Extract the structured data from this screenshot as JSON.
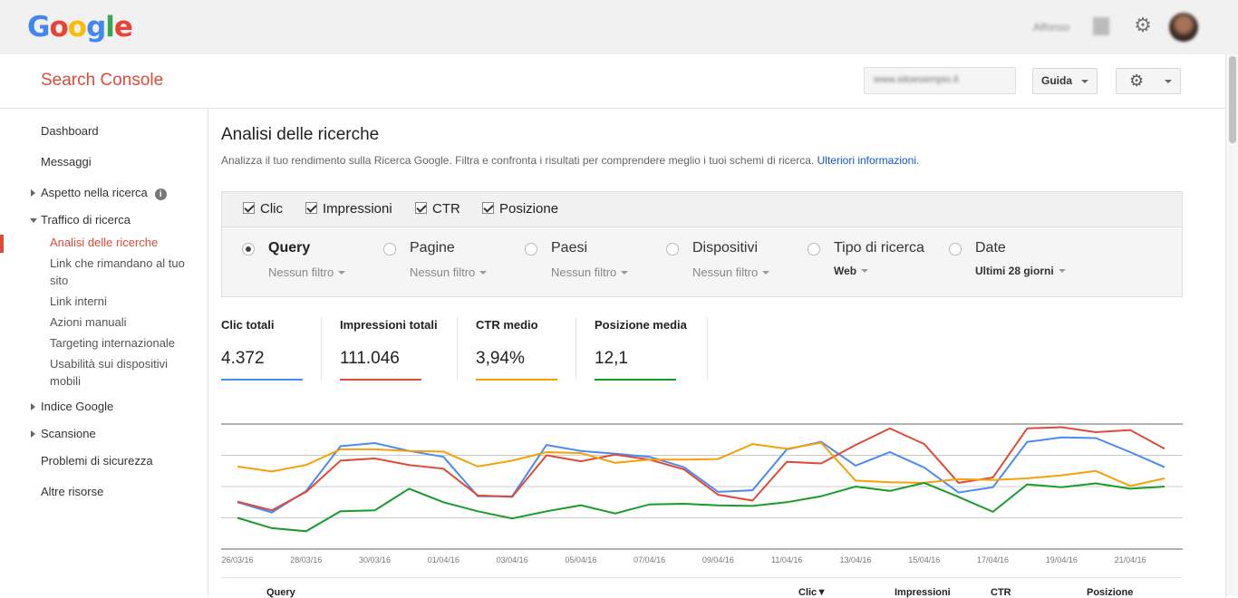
{
  "topbar": {
    "logo": "Google",
    "user_name": "Alfonso"
  },
  "header": {
    "product": "Search Console",
    "site": "www.sitoesempio.it",
    "help_label": "Guida"
  },
  "sidebar": {
    "items": [
      {
        "label": "Dashboard"
      },
      {
        "label": "Messaggi"
      },
      {
        "label": "Aspetto nella ricerca"
      },
      {
        "label": "Traffico di ricerca"
      },
      {
        "label": "Analisi delle ricerche"
      },
      {
        "label": "Link che rimandano al tuo sito"
      },
      {
        "label": "Link interni"
      },
      {
        "label": "Azioni manuali"
      },
      {
        "label": "Targeting internazionale"
      },
      {
        "label": "Usabilità sui dispositivi mobili"
      },
      {
        "label": "Indice Google"
      },
      {
        "label": "Scansione"
      },
      {
        "label": "Problemi di sicurezza"
      },
      {
        "label": "Altre risorse"
      }
    ]
  },
  "main": {
    "title": "Analisi delle ricerche",
    "description": "Analizza il tuo rendimento sulla Ricerca Google. Filtra e confronta i risultati per comprendere meglio i tuoi schemi di ricerca.",
    "more_link": "Ulteriori informazioni",
    "metrics": [
      {
        "label": "Clic",
        "checked": true
      },
      {
        "label": "Impressioni",
        "checked": true
      },
      {
        "label": "CTR",
        "checked": true
      },
      {
        "label": "Posizione",
        "checked": true
      }
    ],
    "dimensions": [
      {
        "label": "Query",
        "filter": "Nessun filtro",
        "selected": true
      },
      {
        "label": "Pagine",
        "filter": "Nessun filtro",
        "selected": false
      },
      {
        "label": "Paesi",
        "filter": "Nessun filtro",
        "selected": false
      },
      {
        "label": "Dispositivi",
        "filter": "Nessun filtro",
        "selected": false
      },
      {
        "label": "Tipo di ricerca",
        "filter": "Web",
        "selected": false
      },
      {
        "label": "Date",
        "filter": "Ultimi 28 giorni",
        "selected": false
      }
    ],
    "kpis": [
      {
        "label": "Clic totali",
        "value": "4.372",
        "color": "#4a8af4"
      },
      {
        "label": "Impressioni totali",
        "value": "111.046",
        "color": "#dd4b39"
      },
      {
        "label": "CTR medio",
        "value": "3,94%",
        "color": "#f4a10a"
      },
      {
        "label": "Posizione media",
        "value": "12,1",
        "color": "#1a9c2a"
      }
    ],
    "table_headers": {
      "query": "Query",
      "clicks": "Clic▼",
      "impressions": "Impressioni",
      "ctr": "CTR",
      "position": "Posizione"
    }
  },
  "chart_data": {
    "type": "line",
    "x": [
      "26/03/16",
      "27/03/16",
      "28/03/16",
      "29/03/16",
      "30/03/16",
      "31/03/16",
      "01/04/16",
      "02/04/16",
      "03/04/16",
      "04/04/16",
      "05/04/16",
      "06/04/16",
      "07/04/16",
      "08/04/16",
      "09/04/16",
      "10/04/16",
      "11/04/16",
      "12/04/16",
      "13/04/16",
      "14/04/16",
      "15/04/16",
      "16/04/16",
      "17/04/16",
      "18/04/16",
      "19/04/16",
      "20/04/16",
      "21/04/16",
      "22/04/16"
    ],
    "tick_labels": [
      "26/03/16",
      "28/03/16",
      "30/03/16",
      "01/04/16",
      "03/04/16",
      "05/04/16",
      "07/04/16",
      "09/04/16",
      "11/04/16",
      "13/04/16",
      "15/04/16",
      "17/04/16",
      "19/04/16",
      "21/04/16"
    ],
    "ylim": [
      0,
      4
    ],
    "grid": true,
    "series": [
      {
        "name": "Clic",
        "color": "#4a8af4",
        "values": [
          1.5,
          1.17,
          1.86,
          3.29,
          3.39,
          3.14,
          2.95,
          1.69,
          1.69,
          3.33,
          3.14,
          3.05,
          2.95,
          2.62,
          1.83,
          1.88,
          3.19,
          3.43,
          2.67,
          3.1,
          2.61,
          1.81,
          1.98,
          3.43,
          3.57,
          3.55,
          3.1,
          2.62
        ]
      },
      {
        "name": "Impressioni",
        "color": "#dd4b39",
        "values": [
          1.52,
          1.24,
          1.83,
          2.83,
          2.9,
          2.69,
          2.57,
          1.72,
          1.67,
          3.0,
          2.81,
          3.02,
          2.86,
          2.55,
          1.74,
          1.55,
          2.79,
          2.74,
          3.33,
          3.86,
          3.36,
          2.12,
          2.29,
          3.86,
          3.9,
          3.74,
          3.81,
          3.21
        ]
      },
      {
        "name": "CTR",
        "color": "#f4a10a",
        "values": [
          2.64,
          2.48,
          2.69,
          3.19,
          3.19,
          3.14,
          3.12,
          2.64,
          2.83,
          3.1,
          3.07,
          2.76,
          2.86,
          2.86,
          2.88,
          3.36,
          3.21,
          3.4,
          2.19,
          2.14,
          2.12,
          2.24,
          2.21,
          2.26,
          2.36,
          2.5,
          2.02,
          2.26
        ]
      },
      {
        "name": "Posizione",
        "color": "#1a9c2a",
        "values": [
          1.0,
          0.67,
          0.57,
          1.21,
          1.24,
          1.93,
          1.5,
          1.21,
          0.98,
          1.21,
          1.4,
          1.14,
          1.43,
          1.45,
          1.4,
          1.38,
          1.5,
          1.69,
          2.0,
          1.86,
          2.12,
          1.67,
          1.19,
          2.07,
          1.98,
          2.1,
          1.93,
          2.0
        ]
      }
    ]
  }
}
